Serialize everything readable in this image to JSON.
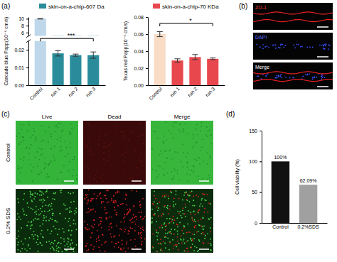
{
  "panel_labels": [
    "(a)",
    "(b)",
    "(c)",
    "(d)"
  ],
  "chart_data": [
    {
      "type": "bar",
      "ylabel": "Cascade blue Papp(10⁻⁶ cm/s)",
      "categories": [
        "Control",
        "run 1",
        "run 2",
        "run 3"
      ],
      "series": [
        {
          "name": "skin-on-a-chip-607 Da",
          "color": "#2a8c9a",
          "colors": [
            "#bfd7ea",
            "#2a8c9a",
            "#2a8c9a",
            "#2a8c9a"
          ],
          "values": [
            10,
            0.018,
            0.017,
            0.017
          ],
          "errors": [
            0.08,
            0.0015,
            0.0006,
            0.0018
          ]
        }
      ],
      "y_segments": [
        {
          "ylim": [
            0,
            0.025
          ],
          "yticks": [
            {
              "value": 0,
              "label": "0.00"
            },
            0.01,
            0.02
          ]
        },
        {
          "ylim": [
            5,
            10.5
          ],
          "yticks": [
            6,
            8,
            10
          ]
        }
      ],
      "legend": "top",
      "annotations": [
        "***"
      ]
    },
    {
      "type": "bar",
      "ylabel": "Texas red Papp(10⁻⁶ cm/s)",
      "categories": [
        "Control",
        "run 1",
        "run 2",
        "run 3"
      ],
      "series": [
        {
          "name": "skin-on-a-chip-70 KDa",
          "color": "#e8484d",
          "colors": [
            "#f8dcc6",
            "#e8484d",
            "#e8484d",
            "#e8484d"
          ],
          "values": [
            0.06,
            0.029,
            0.033,
            0.031
          ],
          "errors": [
            0.003,
            0.002,
            0.003,
            0.001
          ]
        }
      ],
      "ylim": [
        0,
        0.08
      ],
      "yticks": [
        {
          "value": 0,
          "label": "0.00"
        },
        0.02,
        0.04,
        0.06,
        0.08
      ],
      "legend": "top",
      "annotations": [
        "*"
      ]
    },
    {
      "type": "bar",
      "ylabel": "Cell viability (%)",
      "categories": [
        "Control",
        "0.2%SDS"
      ],
      "series": [
        {
          "colors": [
            "#111111",
            "#a0a0a0"
          ],
          "values": [
            100,
            62.09
          ],
          "value_labels": [
            "100%",
            "62.09%"
          ]
        }
      ],
      "ylim": [
        0,
        150
      ],
      "yticks": [
        0,
        50,
        100,
        150
      ],
      "data_labels": true
    }
  ],
  "image_panels": {
    "b": {
      "channels": [
        "ZO-1",
        "DAPI",
        "Merge"
      ]
    },
    "c": {
      "columns": [
        "Live",
        "Dead",
        "Merge"
      ],
      "rows": [
        "Control",
        "0.2% SDS"
      ]
    }
  }
}
